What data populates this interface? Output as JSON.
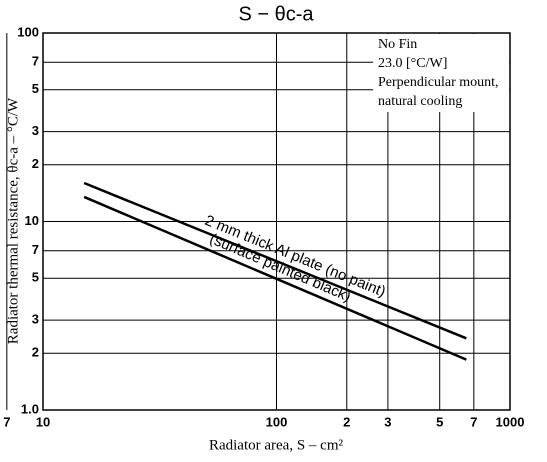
{
  "chart_data": {
    "type": "line",
    "title": "S − θc-a",
    "x_label": "Radiator area, S – cm²",
    "y_label": "Radiator thermal resistance, θc-a – °C/W",
    "log_x": true,
    "log_y": true,
    "grid": true,
    "xlim": [
      10,
      1000
    ],
    "ylim": [
      1,
      100
    ],
    "xticks": [
      10,
      2,
      3,
      5,
      7,
      100,
      {
        "value": 200,
        "label": "2"
      },
      {
        "value": 300,
        "label": "3"
      },
      {
        "value": 500,
        "label": "5"
      },
      {
        "value": 700,
        "label": "7"
      },
      1000
    ],
    "yticks": [
      {
        "value": 1,
        "label": "1.0"
      },
      2,
      3,
      5,
      7,
      10,
      {
        "value": 20,
        "label": "2"
      },
      {
        "value": 30,
        "label": "3"
      },
      {
        "value": 50,
        "label": "5"
      },
      {
        "value": 70,
        "label": "7"
      },
      100
    ],
    "annotation": [
      "No Fin",
      "23.0 [°C/W]",
      "Perpendicular mount,",
      "natural cooling"
    ],
    "series": [
      {
        "name": "2 mm thick Al plate (no paint)",
        "color": "#000000",
        "x": [
          15,
          650
        ],
        "values": [
          16,
          2.4
        ]
      },
      {
        "name": "(surface painted black)",
        "color": "#000000",
        "x": [
          15,
          650
        ],
        "values": [
          13.5,
          1.85
        ]
      }
    ]
  }
}
